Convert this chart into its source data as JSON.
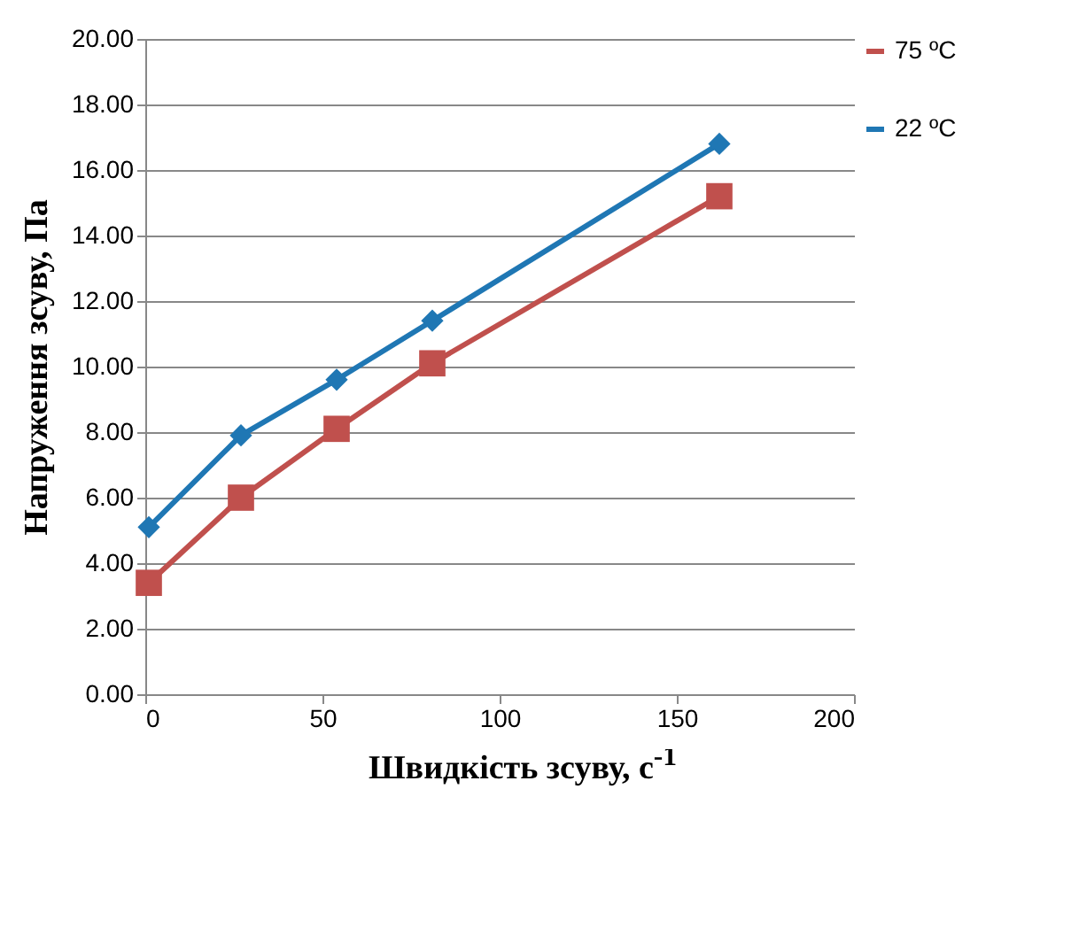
{
  "chart_data": {
    "type": "line",
    "xlabel": "Швидкість зсуву,  с$^{-1}$",
    "ylabel": "Напруження зсуву, Па",
    "x": [
      1,
      27,
      54,
      81,
      162
    ],
    "series": [
      {
        "name": "75 ºC",
        "color": "#c0504d",
        "marker": "square",
        "values": [
          3.4,
          6.0,
          8.1,
          10.1,
          15.2
        ]
      },
      {
        "name": "22 ºC",
        "color": "#1f77b4",
        "marker": "diamond",
        "values": [
          5.1,
          7.9,
          9.6,
          11.4,
          16.8
        ]
      }
    ],
    "xlim": [
      0,
      200
    ],
    "xticks": [
      0,
      50,
      100,
      150,
      200
    ],
    "ylim": [
      0,
      20
    ],
    "yticks": [
      {
        "value": 0,
        "label": "0.00"
      },
      {
        "value": 2,
        "label": "2.00"
      },
      {
        "value": 4,
        "label": "4.00"
      },
      {
        "value": 6,
        "label": "6.00"
      },
      {
        "value": 8,
        "label": "8.00"
      },
      {
        "value": 10,
        "label": "10.00"
      },
      {
        "value": 12,
        "label": "12.00"
      },
      {
        "value": 14,
        "label": "14.00"
      },
      {
        "value": 16,
        "label": "16.00"
      },
      {
        "value": 18,
        "label": "18.00"
      },
      {
        "value": 20,
        "label": "20.00"
      }
    ],
    "grid": "y",
    "legend": "right"
  }
}
